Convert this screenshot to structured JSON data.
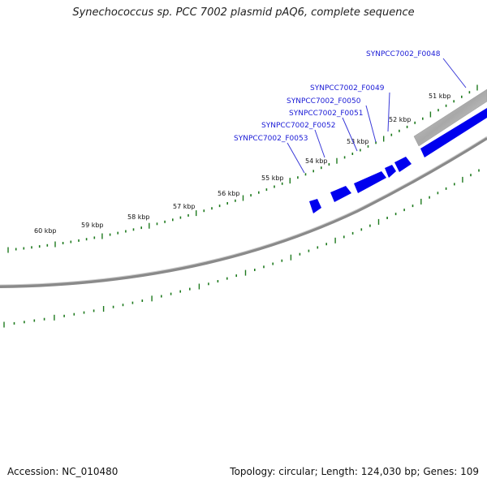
{
  "title": "Synechococcus sp. PCC 7002 plasmid pAQ6, complete sequence",
  "footer": {
    "accession": "Accession: NC_010480",
    "summary": "Topology: circular; Length: 124,030 bp; Genes: 109"
  },
  "kbp_labels": [
    "51 kbp",
    "52 kbp",
    "53 kbp",
    "54 kbp",
    "55 kbp",
    "56 kbp",
    "57 kbp",
    "58 kbp",
    "59 kbp",
    "60 kbp"
  ],
  "genes": [
    "SYNPCC7002_F0048",
    "SYNPCC7002_F0049",
    "SYNPCC7002_F0050",
    "SYNPCC7002_F0051",
    "SYNPCC7002_F0052",
    "SYNPCC7002_F0053"
  ],
  "colors": {
    "gene": "#0000ee",
    "gene_label": "#1a1ad6",
    "tick": "#1e7a1e",
    "backbone": "#7a7a7a"
  }
}
